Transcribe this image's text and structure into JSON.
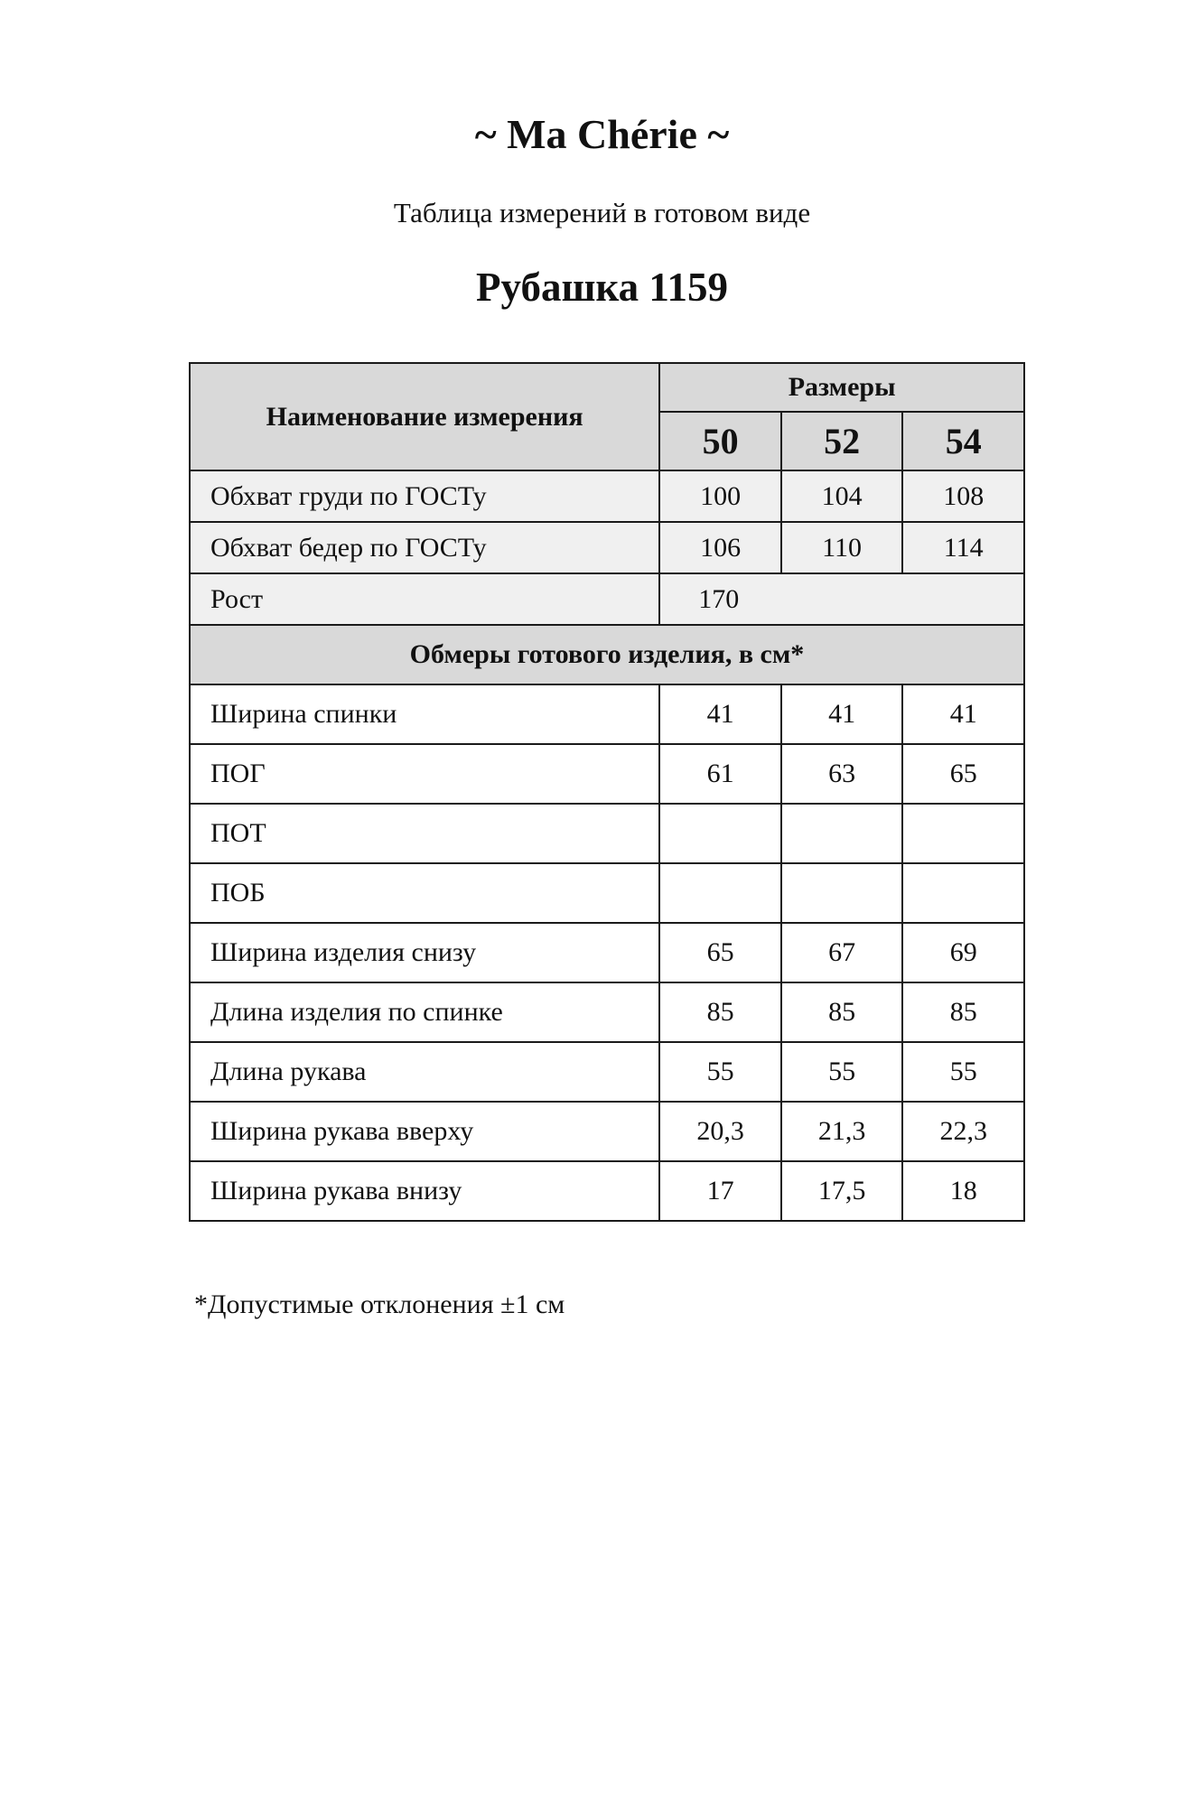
{
  "brand": "~ Ma Chérie ~",
  "subtitle": "Таблица измерений в готовом виде",
  "product": "Рубашка 1159",
  "table": {
    "header_name": "Наименование измерения",
    "header_sizes": "Размеры",
    "sizes": [
      "50",
      "52",
      "54"
    ],
    "standard_rows": [
      {
        "name": "Обхват груди по ГОСТу",
        "values": [
          "100",
          "104",
          "108"
        ]
      },
      {
        "name": "Обхват бедер по ГОСТу",
        "values": [
          "106",
          "110",
          "114"
        ]
      }
    ],
    "height_row": {
      "name": "Рост",
      "value": "170"
    },
    "section_title": "Обмеры готового изделия, в см*",
    "rows": [
      {
        "name": "Ширина спинки",
        "values": [
          "41",
          "41",
          "41"
        ]
      },
      {
        "name": "ПОГ",
        "values": [
          "61",
          "63",
          "65"
        ]
      },
      {
        "name": "ПОТ",
        "values": [
          "",
          "",
          ""
        ]
      },
      {
        "name": "ПОБ",
        "values": [
          "",
          "",
          ""
        ]
      },
      {
        "name": "Ширина изделия снизу",
        "values": [
          "65",
          "67",
          "69"
        ]
      },
      {
        "name": "Длина изделия по спинке",
        "values": [
          "85",
          "85",
          "85"
        ]
      },
      {
        "name": "Длина рукава",
        "values": [
          "55",
          "55",
          "55"
        ]
      },
      {
        "name": "Ширина рукава вверху",
        "values": [
          "20,3",
          "21,3",
          "22,3"
        ]
      },
      {
        "name": "Ширина рукава внизу",
        "values": [
          "17",
          "17,5",
          "18"
        ]
      }
    ]
  },
  "footnote": "*Допустимые отклонения ±1 см"
}
